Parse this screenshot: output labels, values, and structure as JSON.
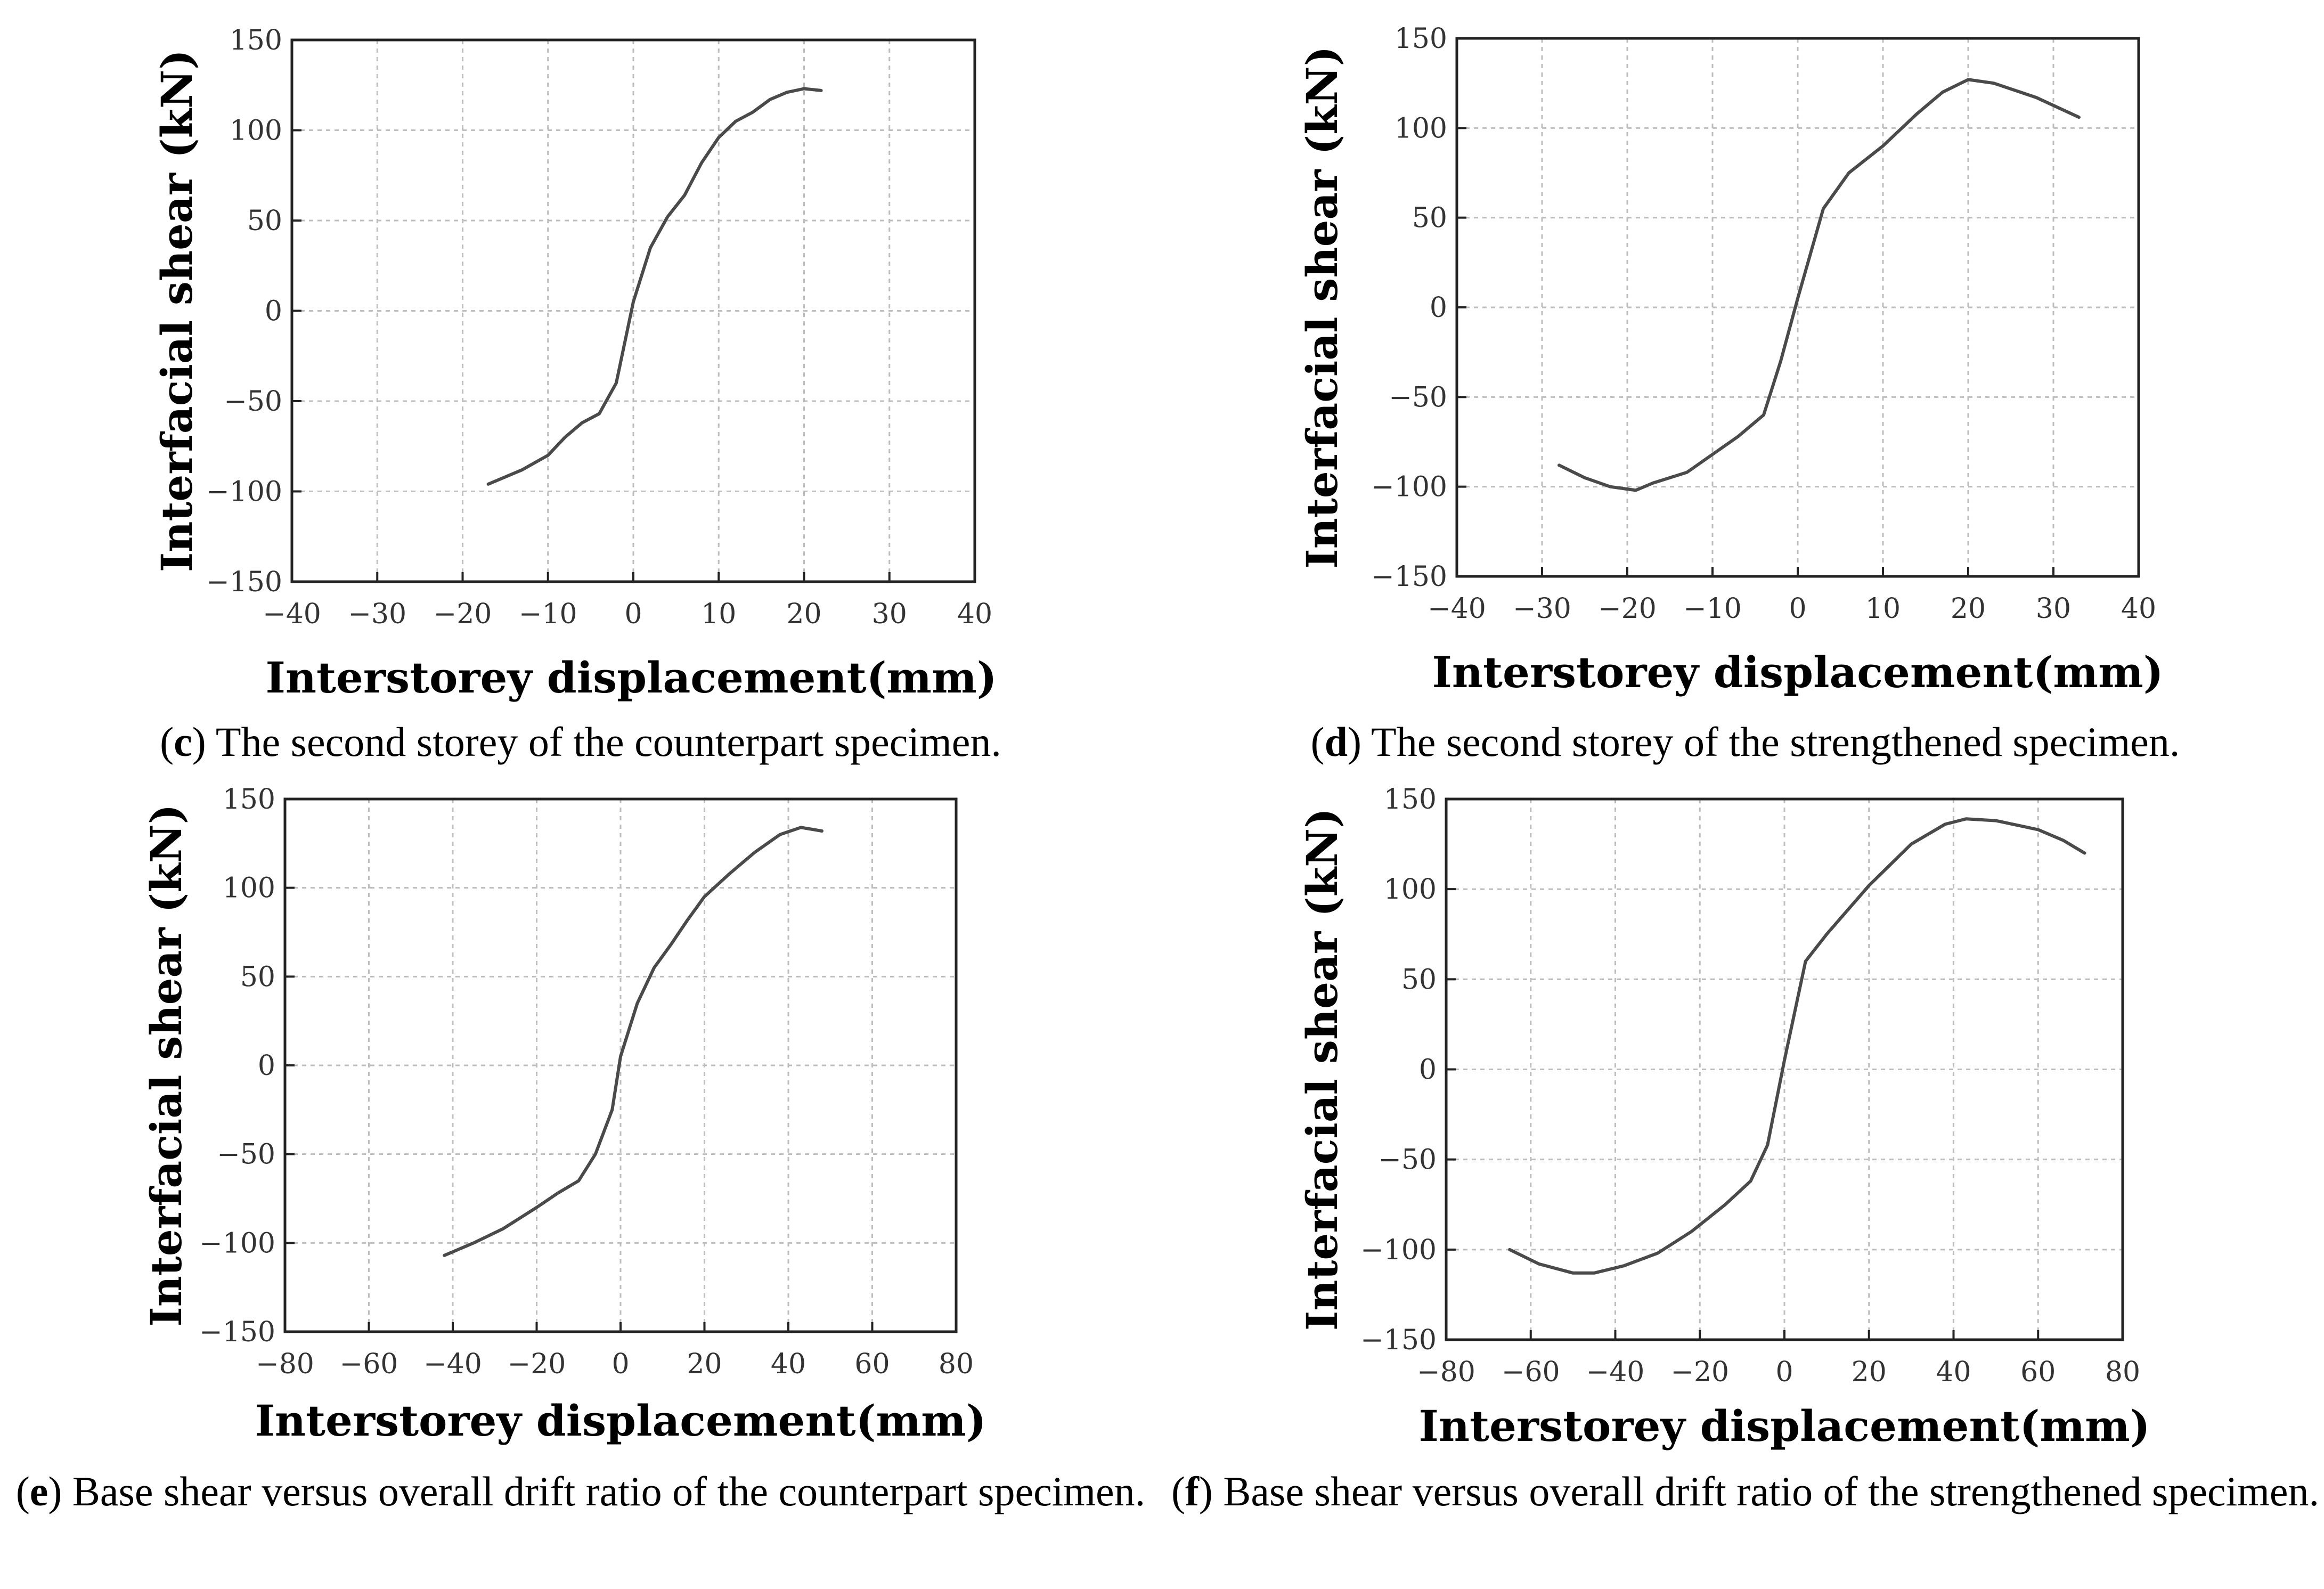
{
  "chart_data": [
    {
      "id": "c",
      "type": "line",
      "xlabel": "Interstorey displacement(mm)",
      "ylabel": "Interfacial shear (kN)",
      "xlim": [
        -40,
        40
      ],
      "ylim": [
        -150,
        150
      ],
      "xticks": [
        -40,
        -30,
        -20,
        -10,
        0,
        10,
        20,
        30,
        40
      ],
      "yticks": [
        -150,
        -100,
        -50,
        0,
        50,
        100,
        150
      ],
      "grid": true,
      "series": [
        {
          "name": "curve",
          "x": [
            -17,
            -13,
            -10,
            -8,
            -6,
            -4,
            -2,
            0,
            2,
            4,
            6,
            8,
            10,
            12,
            14,
            16,
            18,
            20,
            22
          ],
          "y": [
            -96,
            -88,
            -80,
            -70,
            -62,
            -57,
            -40,
            5,
            35,
            52,
            64,
            82,
            96,
            105,
            110,
            117,
            121,
            123,
            122
          ]
        }
      ],
      "caption_letter": "c",
      "caption_text": "The second storey of the counterpart specimen."
    },
    {
      "id": "d",
      "type": "line",
      "xlabel": "Interstorey displacement(mm)",
      "ylabel": "Interfacial shear (kN)",
      "xlim": [
        -40,
        40
      ],
      "ylim": [
        -150,
        150
      ],
      "xticks": [
        -40,
        -30,
        -20,
        -10,
        0,
        10,
        20,
        30,
        40
      ],
      "yticks": [
        -150,
        -100,
        -50,
        0,
        50,
        100,
        150
      ],
      "grid": true,
      "series": [
        {
          "name": "curve",
          "x": [
            -28,
            -25,
            -22,
            -19,
            -17,
            -13,
            -10,
            -7,
            -4,
            -2,
            0,
            3,
            6,
            10,
            14,
            17,
            20,
            23,
            28,
            33
          ],
          "y": [
            -88,
            -95,
            -100,
            -102,
            -98,
            -92,
            -82,
            -72,
            -60,
            -30,
            5,
            55,
            75,
            90,
            108,
            120,
            127,
            125,
            117,
            106
          ]
        }
      ],
      "caption_letter": "d",
      "caption_text": "The second storey of the strengthened specimen."
    },
    {
      "id": "e",
      "type": "line",
      "xlabel": "Interstorey displacement(mm)",
      "ylabel": "Interfacial shear (kN)",
      "xlim": [
        -80,
        80
      ],
      "ylim": [
        -150,
        150
      ],
      "xticks": [
        -80,
        -60,
        -40,
        -20,
        0,
        20,
        40,
        60,
        80
      ],
      "yticks": [
        -150,
        -100,
        -50,
        0,
        50,
        100,
        150
      ],
      "grid": true,
      "series": [
        {
          "name": "curve",
          "x": [
            -42,
            -35,
            -28,
            -20,
            -15,
            -10,
            -6,
            -2,
            0,
            4,
            8,
            12,
            16,
            20,
            26,
            32,
            38,
            43,
            48
          ],
          "y": [
            -107,
            -100,
            -92,
            -80,
            -72,
            -65,
            -50,
            -25,
            5,
            35,
            55,
            68,
            82,
            95,
            108,
            120,
            130,
            134,
            132
          ]
        }
      ],
      "caption_letter": "e",
      "caption_text": "Base shear versus overall drift ratio of the counterpart specimen."
    },
    {
      "id": "f",
      "type": "line",
      "xlabel": "Interstorey displacement(mm)",
      "ylabel": "Interfacial shear (kN)",
      "xlim": [
        -80,
        80
      ],
      "ylim": [
        -150,
        150
      ],
      "xticks": [
        -80,
        -60,
        -40,
        -20,
        0,
        20,
        40,
        60,
        80
      ],
      "yticks": [
        -150,
        -100,
        -50,
        0,
        50,
        100,
        150
      ],
      "grid": true,
      "series": [
        {
          "name": "curve",
          "x": [
            -65,
            -58,
            -50,
            -45,
            -38,
            -30,
            -22,
            -14,
            -8,
            -4,
            0,
            5,
            10,
            20,
            30,
            38,
            43,
            50,
            60,
            66,
            71
          ],
          "y": [
            -100,
            -108,
            -113,
            -113,
            -109,
            -102,
            -90,
            -75,
            -62,
            -42,
            5,
            60,
            75,
            102,
            125,
            136,
            139,
            138,
            133,
            127,
            120
          ]
        }
      ],
      "caption_letter": "f",
      "caption_text": "Base shear versus overall drift ratio of the strengthened specimen."
    }
  ],
  "style": {
    "line_color": "#4a4a4a",
    "axis_color": "#222222",
    "grid_color": "#bdbdbd"
  }
}
